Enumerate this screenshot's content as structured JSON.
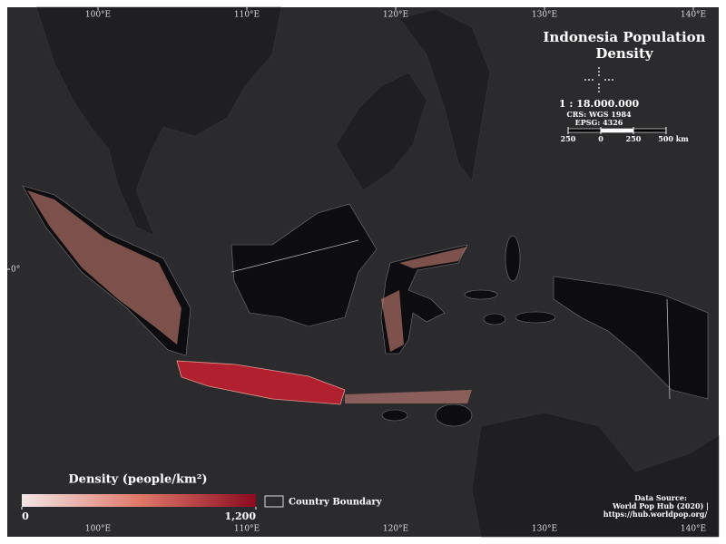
{
  "map": {
    "title": "Indonesia Population Density",
    "scale": "1 : 18.000.000",
    "crs": "CRS: WGS 1984",
    "epsg": "EPSG: 4326",
    "scale_bar_ticks": [
      {
        "value": -250,
        "label": "250"
      },
      0,
      250,
      {
        "value": 500,
        "label": "500 km"
      }
    ],
    "longitude_ticks": [
      {
        "value": 100,
        "label": "100°E"
      },
      {
        "value": 110,
        "label": "110°E"
      },
      {
        "value": 120,
        "label": "120°E"
      },
      {
        "value": 130,
        "label": "130°E"
      },
      {
        "value": 140,
        "label": "140°E"
      }
    ],
    "latitude_ticks": [
      {
        "value": 0,
        "label": "0°"
      }
    ],
    "legend": {
      "title": "Density (people/km²)",
      "colors": [
        "#f2e6e6",
        "#e0796a",
        "#8b0a1e"
      ],
      "ticks": [
        0,
        {
          "value": 1200,
          "label": "1,200"
        }
      ],
      "boundary_label": "Country Boundary"
    },
    "source": [
      "Data Source:",
      "World Pop Hub (2020) |",
      "https://hub.worldpop.org/"
    ]
  }
}
